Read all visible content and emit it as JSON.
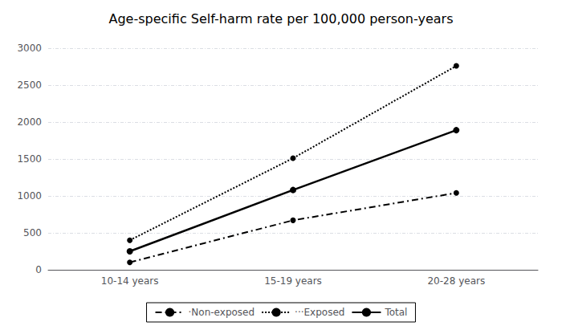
{
  "chart_data": {
    "type": "line",
    "title": "Age-specific Self-harm rate per 100,000 person-years",
    "categories": [
      "10-14 years",
      "15-19 years",
      "20-28 years"
    ],
    "series": [
      {
        "name": "·Non-exposed",
        "color": "#000000",
        "line_style": "dashdot",
        "marker": "circle",
        "values": [
          100,
          670,
          1040
        ]
      },
      {
        "name": "···Exposed",
        "color": "#000000",
        "line_style": "dotted",
        "marker": "circle",
        "values": [
          400,
          1510,
          2760
        ]
      },
      {
        "name": "Total",
        "color": "#000000",
        "line_style": "solid",
        "marker": "circle",
        "values": [
          250,
          1080,
          1890
        ]
      }
    ],
    "ylim": [
      0,
      3000
    ],
    "yticks": [
      0,
      500,
      1000,
      1500,
      2000,
      2500,
      3000
    ],
    "grid": true,
    "legend": "bottom"
  }
}
